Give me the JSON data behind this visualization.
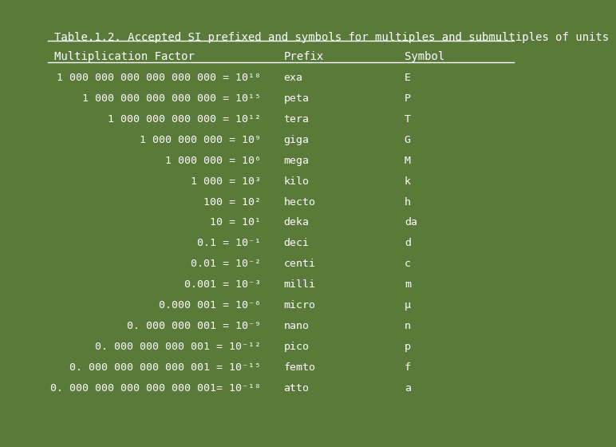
{
  "title": "Table.1.2. Accepted SI prefixed and symbols for multiples and submultiples of units",
  "headers": [
    "Multiplication Factor",
    "Prefix",
    "Symbol"
  ],
  "rows": [
    [
      "1 000 000 000 000 000 000 = 10¹⁸",
      "exa",
      "E"
    ],
    [
      "1 000 000 000 000 000 = 10¹⁵",
      "peta",
      "P"
    ],
    [
      "1 000 000 000 000 = 10¹²",
      "tera",
      "T"
    ],
    [
      "1 000 000 000 = 10⁹",
      "giga",
      "G"
    ],
    [
      "1 000 000 = 10⁶",
      "mega",
      "M"
    ],
    [
      "1 000 = 10³",
      "kilo",
      "k"
    ],
    [
      "100 = 10²",
      "hecto",
      "h"
    ],
    [
      "10 = 10¹",
      "deka",
      "da"
    ],
    [
      "0.1 = 10⁻¹",
      "deci",
      "d"
    ],
    [
      "0.01 = 10⁻²",
      "centi",
      "c"
    ],
    [
      "0.001 = 10⁻³",
      "milli",
      "m"
    ],
    [
      "0.000 001 = 10⁻⁶",
      "micro",
      "μ"
    ],
    [
      "0. 000 000 001 = 10⁻⁹",
      "nano",
      "n"
    ],
    [
      "0. 000 000 000 001 = 10⁻¹²",
      "pico",
      "p"
    ],
    [
      "0. 000 000 000 000 001 = 10⁻¹⁵",
      "femto",
      "f"
    ],
    [
      "0. 000 000 000 000 000 001= 10⁻¹⁸",
      "atto",
      "a"
    ]
  ],
  "bg_color": "#5a7a3a",
  "text_color": "#ffffff",
  "title_color": "#ffffff",
  "line_color": "#ffffff",
  "font_size": 9.5,
  "title_font_size": 10,
  "header_font_size": 10
}
